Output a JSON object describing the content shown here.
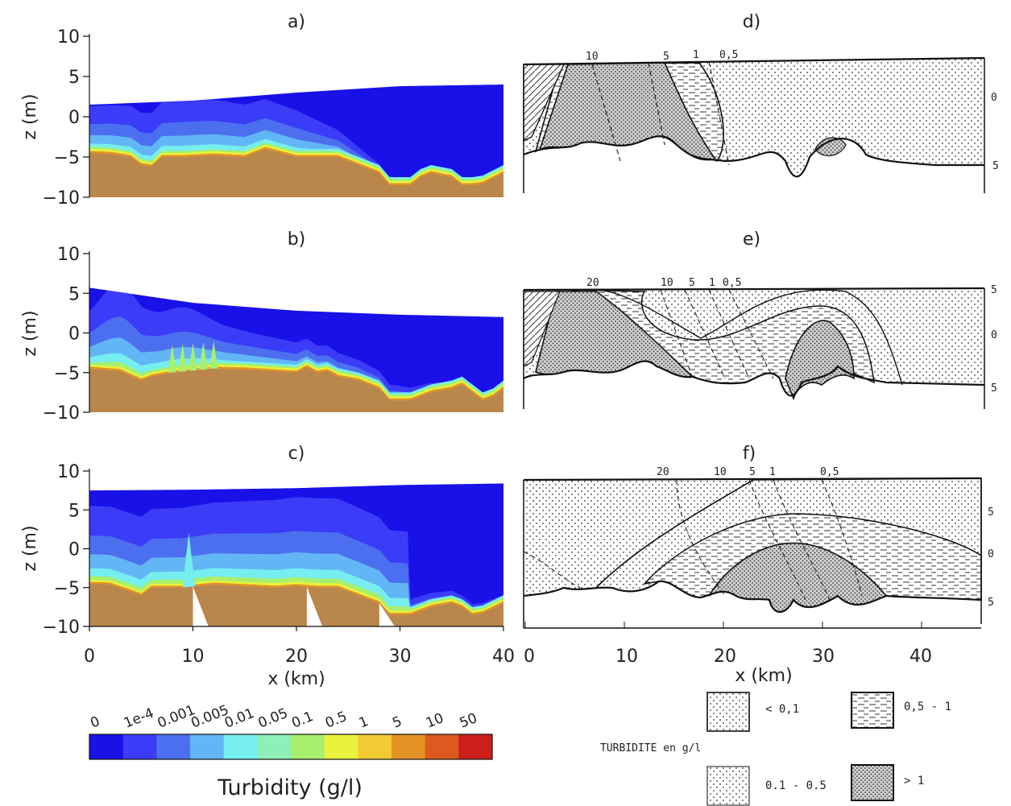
{
  "chart_data": [
    {
      "type": "area",
      "panel": "a)",
      "x_ticks": [
        "0",
        "10",
        "20",
        "30",
        "40"
      ],
      "y_ticks": [
        "10",
        "5",
        "0",
        "−5",
        "−10"
      ],
      "xlim": [
        0,
        40
      ],
      "ylim": [
        -10,
        10
      ],
      "ylabel": "z (m)",
      "surface_z": [
        [
          0,
          1.5
        ],
        [
          10,
          2
        ],
        [
          20,
          3
        ],
        [
          30,
          3.8
        ],
        [
          40,
          4
        ]
      ],
      "bed_z": [
        [
          0,
          -4.5
        ],
        [
          2,
          -4.6
        ],
        [
          4,
          -5
        ],
        [
          5,
          -6
        ],
        [
          6,
          -6.2
        ],
        [
          7,
          -5
        ],
        [
          9,
          -5
        ],
        [
          12,
          -4.8
        ],
        [
          15,
          -5
        ],
        [
          17,
          -4
        ],
        [
          20,
          -5
        ],
        [
          22,
          -5
        ],
        [
          24,
          -5
        ],
        [
          26,
          -6
        ],
        [
          28,
          -7
        ],
        [
          29,
          -8.5
        ],
        [
          31,
          -8.5
        ],
        [
          32,
          -7.5
        ],
        [
          33,
          -7
        ],
        [
          35,
          -7.5
        ],
        [
          36,
          -8.5
        ],
        [
          37,
          -8.5
        ],
        [
          38,
          -8.3
        ],
        [
          40,
          -7
        ]
      ]
    },
    {
      "type": "area",
      "panel": "b)",
      "x_ticks": [
        "0",
        "10",
        "20",
        "30",
        "40"
      ],
      "y_ticks": [
        "10",
        "5",
        "0",
        "−5",
        "−10"
      ],
      "xlim": [
        0,
        40
      ],
      "ylim": [
        -10,
        10
      ],
      "ylabel": "z (m)",
      "surface_z": [
        [
          0,
          5.7
        ],
        [
          10,
          3.8
        ],
        [
          20,
          2.8
        ],
        [
          30,
          2.3
        ],
        [
          40,
          2
        ]
      ],
      "bed_z": [
        [
          0,
          -4.5
        ],
        [
          3,
          -4.8
        ],
        [
          5,
          -6
        ],
        [
          6,
          -5.5
        ],
        [
          8,
          -5
        ],
        [
          12,
          -4.5
        ],
        [
          15,
          -4.6
        ],
        [
          20,
          -5
        ],
        [
          21,
          -4.3
        ],
        [
          22,
          -5
        ],
        [
          23,
          -4.8
        ],
        [
          24,
          -5.5
        ],
        [
          26,
          -6
        ],
        [
          28,
          -7
        ],
        [
          29,
          -8.5
        ],
        [
          31,
          -8.5
        ],
        [
          33,
          -7.5
        ],
        [
          35,
          -7
        ],
        [
          36,
          -6.5
        ],
        [
          37,
          -7.5
        ],
        [
          38,
          -8.5
        ],
        [
          39,
          -8
        ],
        [
          40,
          -7
        ]
      ]
    },
    {
      "type": "area",
      "panel": "c)",
      "x_ticks": [
        "0",
        "10",
        "20",
        "30",
        "40"
      ],
      "y_ticks": [
        "10",
        "5",
        "0",
        "−5",
        "−10"
      ],
      "xlim": [
        0,
        40
      ],
      "ylim": [
        -10,
        10
      ],
      "ylabel": "z (m)",
      "xlabel": "x (km)",
      "surface_z": [
        [
          0,
          7.5
        ],
        [
          10,
          7.6
        ],
        [
          20,
          7.8
        ],
        [
          30,
          8.2
        ],
        [
          40,
          8.4
        ]
      ],
      "bed_z": [
        [
          0,
          -4.5
        ],
        [
          2,
          -4.6
        ],
        [
          4,
          -5.5
        ],
        [
          5,
          -6
        ],
        [
          6,
          -5
        ],
        [
          9,
          -5
        ],
        [
          12,
          -4.6
        ],
        [
          15,
          -4.8
        ],
        [
          18,
          -5
        ],
        [
          20,
          -4.8
        ],
        [
          22,
          -5
        ],
        [
          24,
          -5
        ],
        [
          26,
          -6
        ],
        [
          28,
          -7
        ],
        [
          29,
          -8.5
        ],
        [
          31,
          -8.5
        ],
        [
          33,
          -7.5
        ],
        [
          35,
          -7
        ],
        [
          36,
          -7.5
        ],
        [
          37,
          -8.5
        ],
        [
          38,
          -8.3
        ],
        [
          40,
          -7
        ]
      ]
    },
    {
      "type": "area",
      "panel": "d)",
      "x_ticks": [],
      "right_ticks": [
        "0",
        "5"
      ],
      "contour_labels": [
        "10",
        "5",
        "1",
        "0,5"
      ]
    },
    {
      "type": "area",
      "panel": "e)",
      "x_ticks": [],
      "right_ticks": [
        "5",
        "0",
        "5"
      ],
      "contour_labels": [
        "20",
        "10",
        "5",
        "1",
        "0,5"
      ]
    },
    {
      "type": "area",
      "panel": "f)",
      "x_ticks": [
        "0",
        "10",
        "20",
        "30",
        "40"
      ],
      "xlabel": "x (km)",
      "right_ticks": [
        "5",
        "0",
        "5"
      ],
      "contour_labels": [
        "20",
        "10",
        "5",
        "1",
        "0,5"
      ]
    }
  ],
  "colorbar": {
    "title": "Turbidity (g/l)",
    "levels": [
      "0",
      "1e-4",
      "0.001",
      "0.005",
      "0.01",
      "0.05",
      "0.1",
      "0.5",
      "1",
      "5",
      "10",
      "50"
    ],
    "colors": [
      "#1a10e8",
      "#3a3cf7",
      "#4c6ff0",
      "#63b6f5",
      "#76eef0",
      "#8ef0b8",
      "#a8ef6e",
      "#e9f23c",
      "#f2cb34",
      "#e49224",
      "#dc5a1f",
      "#cc1f1c"
    ]
  },
  "legend": {
    "title": "TURBIDITE en g/l",
    "items": [
      "< 0,1",
      "0,5 - 1",
      "0.1 - 0.5",
      "> 1"
    ]
  },
  "colors": {
    "water": "#1a10e8",
    "bed": "#b9864b",
    "c1": "#3a3cf7",
    "c2": "#4c6ff0",
    "c3": "#63b6f5",
    "c4": "#76eef0",
    "c5": "#a8ef6e",
    "c6": "#e9f23c",
    "c7": "#e49224"
  }
}
